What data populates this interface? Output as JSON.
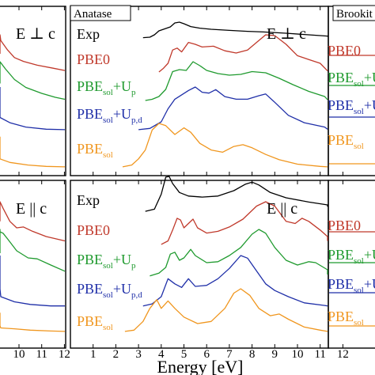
{
  "chart_data": {
    "type": "line",
    "xlabel": "Energy [eV]",
    "x_ticks_center": [
      1,
      2,
      3,
      4,
      5,
      6,
      7,
      8,
      9,
      10,
      11,
      12
    ],
    "x_ticks_left": [
      9,
      10,
      11,
      12
    ],
    "xlim_center": [
      0,
      12.2
    ],
    "xlim_left_visible": [
      7.3,
      12.2
    ],
    "grid": false,
    "panels": [
      {
        "id": "left-top",
        "orientation": "E ⊥ c"
      },
      {
        "id": "left-bottom",
        "orientation": "E || c"
      },
      {
        "id": "center-top",
        "phase": "Anatase",
        "orientation": "E ⊥ c"
      },
      {
        "id": "center-bottom",
        "orientation": "E || c"
      },
      {
        "id": "right-top",
        "phase": "Brookit"
      },
      {
        "id": "right-bottom"
      }
    ],
    "series": [
      {
        "name": "Exp",
        "base": "Exp",
        "sub": "",
        "color": "#000000"
      },
      {
        "name": "PBE0",
        "base": "PBE0",
        "sub": "",
        "color": "#c0392b"
      },
      {
        "name": "PBEsol+Up",
        "base": "PBE",
        "sub": "sol",
        "plus": "+U",
        "plus_sub": "p",
        "color": "#1f9a2e"
      },
      {
        "name": "PBEsol+Up,d",
        "base": "PBE",
        "sub": "sol",
        "plus": "+U",
        "plus_sub": "p,d",
        "color": "#1f2fa8"
      },
      {
        "name": "PBEsol",
        "base": "PBE",
        "sub": "sol",
        "color": "#f0961e"
      }
    ],
    "curves": {
      "center_top": {
        "Exp": [
          [
            3.2,
            0.02
          ],
          [
            3.5,
            0.05
          ],
          [
            3.7,
            0.2
          ],
          [
            3.9,
            0.45
          ],
          [
            4.1,
            0.55
          ],
          [
            4.4,
            0.7
          ],
          [
            4.6,
            0.95
          ],
          [
            4.8,
            1.0
          ],
          [
            5.0,
            0.9
          ],
          [
            5.3,
            0.72
          ],
          [
            5.7,
            0.62
          ],
          [
            6.2,
            0.55
          ],
          [
            7.0,
            0.48
          ],
          [
            7.8,
            0.42
          ],
          [
            8.5,
            0.38
          ],
          [
            9.5,
            0.3
          ],
          [
            10.5,
            0.2
          ],
          [
            11.5,
            0.12
          ],
          [
            12.2,
            0.08
          ]
        ],
        "PBE0": [
          [
            3.9,
            0.02
          ],
          [
            4.1,
            0.12
          ],
          [
            4.3,
            0.25
          ],
          [
            4.5,
            0.6
          ],
          [
            4.7,
            0.65
          ],
          [
            4.9,
            0.55
          ],
          [
            5.2,
            0.8
          ],
          [
            5.5,
            0.75
          ],
          [
            5.8,
            0.68
          ],
          [
            6.3,
            0.7
          ],
          [
            6.8,
            0.58
          ],
          [
            7.3,
            0.52
          ],
          [
            7.8,
            0.6
          ],
          [
            8.2,
            0.8
          ],
          [
            8.6,
            1.0
          ],
          [
            9.0,
            0.98
          ],
          [
            9.5,
            0.75
          ],
          [
            10.0,
            0.45
          ],
          [
            10.5,
            0.35
          ],
          [
            11.0,
            0.25
          ],
          [
            12.2,
            0.05
          ]
        ],
        "PBEsol+Up": [
          [
            3.3,
            0.02
          ],
          [
            3.6,
            0.05
          ],
          [
            3.9,
            0.12
          ],
          [
            4.2,
            0.3
          ],
          [
            4.5,
            0.75
          ],
          [
            4.8,
            0.8
          ],
          [
            5.1,
            0.78
          ],
          [
            5.4,
            1.0
          ],
          [
            5.7,
            0.9
          ],
          [
            6.0,
            0.78
          ],
          [
            6.5,
            0.7
          ],
          [
            7.0,
            0.66
          ],
          [
            7.5,
            0.68
          ],
          [
            8.0,
            0.75
          ],
          [
            8.6,
            0.72
          ],
          [
            9.2,
            0.58
          ],
          [
            9.8,
            0.42
          ],
          [
            10.5,
            0.25
          ],
          [
            11.2,
            0.12
          ],
          [
            12.2,
            0.04
          ]
        ],
        "PBEsol+Up,d": [
          [
            3.0,
            0.02
          ],
          [
            3.5,
            0.05
          ],
          [
            4.0,
            0.2
          ],
          [
            4.3,
            0.5
          ],
          [
            4.6,
            0.72
          ],
          [
            4.9,
            0.82
          ],
          [
            5.2,
            0.92
          ],
          [
            5.5,
            1.0
          ],
          [
            5.8,
            0.88
          ],
          [
            6.1,
            0.86
          ],
          [
            6.4,
            0.94
          ],
          [
            6.8,
            0.78
          ],
          [
            7.3,
            0.72
          ],
          [
            7.8,
            0.72
          ],
          [
            8.3,
            0.8
          ],
          [
            8.6,
            0.84
          ],
          [
            9.0,
            0.65
          ],
          [
            9.6,
            0.35
          ],
          [
            10.3,
            0.18
          ],
          [
            11.2,
            0.08
          ],
          [
            12.2,
            0.03
          ]
        ],
        "PBEsol": [
          [
            2.3,
            0.02
          ],
          [
            2.7,
            0.06
          ],
          [
            3.0,
            0.2
          ],
          [
            3.3,
            0.4
          ],
          [
            3.6,
            0.85
          ],
          [
            3.9,
            1.0
          ],
          [
            4.2,
            0.95
          ],
          [
            4.6,
            0.75
          ],
          [
            5.0,
            0.9
          ],
          [
            5.3,
            0.8
          ],
          [
            5.7,
            0.55
          ],
          [
            6.2,
            0.4
          ],
          [
            6.7,
            0.35
          ],
          [
            7.2,
            0.48
          ],
          [
            7.6,
            0.52
          ],
          [
            8.0,
            0.45
          ],
          [
            8.6,
            0.3
          ],
          [
            9.2,
            0.18
          ],
          [
            10.0,
            0.08
          ],
          [
            11.0,
            0.03
          ],
          [
            12.2,
            0.02
          ]
        ]
      },
      "center_bottom": {
        "Exp": [
          [
            3.3,
            0.02
          ],
          [
            3.7,
            0.08
          ],
          [
            4.0,
            0.5
          ],
          [
            4.2,
            0.98
          ],
          [
            4.35,
            1.0
          ],
          [
            4.5,
            0.8
          ],
          [
            4.8,
            0.55
          ],
          [
            5.2,
            0.45
          ],
          [
            5.8,
            0.42
          ],
          [
            6.5,
            0.45
          ],
          [
            7.2,
            0.6
          ],
          [
            7.7,
            0.78
          ],
          [
            8.0,
            0.84
          ],
          [
            8.3,
            0.76
          ],
          [
            8.8,
            0.55
          ],
          [
            9.5,
            0.4
          ],
          [
            10.5,
            0.28
          ],
          [
            11.5,
            0.2
          ],
          [
            12.2,
            0.15
          ]
        ],
        "PBE0": [
          [
            4.0,
            0.02
          ],
          [
            4.3,
            0.1
          ],
          [
            4.5,
            0.35
          ],
          [
            4.7,
            0.62
          ],
          [
            4.85,
            0.58
          ],
          [
            5.0,
            0.4
          ],
          [
            5.2,
            0.5
          ],
          [
            5.4,
            0.6
          ],
          [
            5.6,
            0.4
          ],
          [
            6.0,
            0.28
          ],
          [
            6.5,
            0.32
          ],
          [
            7.0,
            0.42
          ],
          [
            7.6,
            0.6
          ],
          [
            8.2,
            0.9
          ],
          [
            8.6,
            1.0
          ],
          [
            9.0,
            0.9
          ],
          [
            9.5,
            0.55
          ],
          [
            9.9,
            0.5
          ],
          [
            10.2,
            0.62
          ],
          [
            10.5,
            0.55
          ],
          [
            11.0,
            0.35
          ],
          [
            11.6,
            0.2
          ],
          [
            12.2,
            0.1
          ]
        ],
        "PBEsol+Up": [
          [
            3.5,
            0.02
          ],
          [
            3.9,
            0.08
          ],
          [
            4.2,
            0.2
          ],
          [
            4.4,
            0.48
          ],
          [
            4.6,
            0.52
          ],
          [
            4.8,
            0.35
          ],
          [
            5.0,
            0.4
          ],
          [
            5.3,
            0.58
          ],
          [
            5.5,
            0.45
          ],
          [
            6.0,
            0.3
          ],
          [
            6.5,
            0.32
          ],
          [
            7.0,
            0.45
          ],
          [
            7.5,
            0.62
          ],
          [
            8.0,
            0.9
          ],
          [
            8.3,
            1.0
          ],
          [
            8.6,
            0.92
          ],
          [
            9.0,
            0.62
          ],
          [
            9.5,
            0.35
          ],
          [
            10.0,
            0.25
          ],
          [
            10.5,
            0.32
          ],
          [
            10.8,
            0.3
          ],
          [
            11.5,
            0.15
          ],
          [
            12.2,
            0.05
          ]
        ],
        "PBEsol+Up,d": [
          [
            3.2,
            0.02
          ],
          [
            3.6,
            0.06
          ],
          [
            4.0,
            0.2
          ],
          [
            4.3,
            0.55
          ],
          [
            4.6,
            0.45
          ],
          [
            4.9,
            0.38
          ],
          [
            5.2,
            0.55
          ],
          [
            5.5,
            0.4
          ],
          [
            6.0,
            0.42
          ],
          [
            6.5,
            0.55
          ],
          [
            7.0,
            0.75
          ],
          [
            7.5,
            1.0
          ],
          [
            7.8,
            0.95
          ],
          [
            8.2,
            0.7
          ],
          [
            8.6,
            0.45
          ],
          [
            9.0,
            0.32
          ],
          [
            9.6,
            0.2
          ],
          [
            10.3,
            0.08
          ],
          [
            11.2,
            0.03
          ],
          [
            12.2,
            0.02
          ]
        ],
        "PBEsol": [
          [
            2.4,
            0.02
          ],
          [
            2.8,
            0.05
          ],
          [
            3.2,
            0.25
          ],
          [
            3.5,
            0.55
          ],
          [
            3.8,
            0.75
          ],
          [
            4.0,
            0.55
          ],
          [
            4.3,
            0.72
          ],
          [
            4.6,
            0.55
          ],
          [
            5.0,
            0.35
          ],
          [
            5.6,
            0.2
          ],
          [
            6.2,
            0.25
          ],
          [
            6.8,
            0.55
          ],
          [
            7.2,
            0.9
          ],
          [
            7.5,
            1.0
          ],
          [
            7.9,
            0.85
          ],
          [
            8.3,
            0.55
          ],
          [
            8.8,
            0.38
          ],
          [
            9.2,
            0.42
          ],
          [
            9.6,
            0.3
          ],
          [
            10.3,
            0.12
          ],
          [
            11.0,
            0.05
          ],
          [
            12.2,
            0.02
          ]
        ]
      },
      "left_top": {
        "PBE0": [
          [
            7.3,
            0.5
          ],
          [
            7.8,
            0.6
          ],
          [
            8.3,
            0.75
          ],
          [
            8.7,
            0.98
          ],
          [
            8.9,
            1.0
          ],
          [
            9.2,
            0.85
          ],
          [
            9.5,
            0.6
          ],
          [
            9.8,
            0.4
          ],
          [
            10.2,
            0.3
          ],
          [
            10.8,
            0.2
          ],
          [
            11.5,
            0.12
          ],
          [
            12.2,
            0.06
          ]
        ],
        "PBEsol+Up": [
          [
            7.3,
            0.45
          ],
          [
            7.8,
            0.58
          ],
          [
            8.3,
            0.75
          ],
          [
            8.8,
            0.95
          ],
          [
            9.1,
            1.0
          ],
          [
            9.4,
            0.82
          ],
          [
            9.8,
            0.55
          ],
          [
            10.3,
            0.35
          ],
          [
            11.0,
            0.2
          ],
          [
            11.6,
            0.1
          ],
          [
            12.2,
            0.05
          ]
        ],
        "PBEsol+Up,d": [
          [
            7.3,
            1.0
          ],
          [
            7.7,
            0.82
          ],
          [
            8.1,
            0.62
          ],
          [
            8.5,
            0.45
          ],
          [
            9.0,
            0.3
          ],
          [
            9.6,
            0.18
          ],
          [
            10.3,
            0.08
          ],
          [
            11.2,
            0.03
          ],
          [
            12.2,
            0.02
          ]
        ],
        "PBEsol": [
          [
            7.3,
            0.7
          ],
          [
            7.6,
            0.6
          ],
          [
            8.0,
            0.45
          ],
          [
            8.5,
            0.3
          ],
          [
            9.0,
            0.2
          ],
          [
            9.6,
            0.12
          ],
          [
            10.4,
            0.06
          ],
          [
            11.2,
            0.03
          ],
          [
            12.2,
            0.02
          ]
        ]
      },
      "left_bottom": {
        "PBE0": [
          [
            7.3,
            0.55
          ],
          [
            7.8,
            0.68
          ],
          [
            8.3,
            0.8
          ],
          [
            8.7,
            0.92
          ],
          [
            9.0,
            1.0
          ],
          [
            9.3,
            0.85
          ],
          [
            9.6,
            0.55
          ],
          [
            9.9,
            0.4
          ],
          [
            10.2,
            0.42
          ],
          [
            10.6,
            0.32
          ],
          [
            11.2,
            0.2
          ],
          [
            12.2,
            0.1
          ]
        ],
        "PBEsol+Up": [
          [
            7.3,
            0.5
          ],
          [
            7.7,
            0.62
          ],
          [
            8.1,
            0.75
          ],
          [
            8.5,
            0.9
          ],
          [
            8.8,
            1.0
          ],
          [
            9.0,
            0.95
          ],
          [
            9.3,
            0.92
          ],
          [
            9.5,
            0.8
          ],
          [
            9.9,
            0.55
          ],
          [
            10.4,
            0.4
          ],
          [
            10.8,
            0.38
          ],
          [
            11.4,
            0.25
          ],
          [
            12.2,
            0.12
          ]
        ],
        "PBEsol+Up,d": [
          [
            7.3,
            1.0
          ],
          [
            7.7,
            0.75
          ],
          [
            8.1,
            0.55
          ],
          [
            8.6,
            0.35
          ],
          [
            9.2,
            0.2
          ],
          [
            9.8,
            0.1
          ],
          [
            10.5,
            0.05
          ],
          [
            11.4,
            0.02
          ],
          [
            12.2,
            0.02
          ]
        ],
        "PBEsol": [
          [
            7.3,
            0.45
          ],
          [
            7.7,
            0.35
          ],
          [
            8.1,
            0.25
          ],
          [
            8.6,
            0.15
          ],
          [
            9.2,
            0.1
          ],
          [
            9.8,
            0.08
          ],
          [
            10.5,
            0.05
          ],
          [
            11.4,
            0.03
          ],
          [
            12.2,
            0.02
          ]
        ]
      }
    }
  }
}
